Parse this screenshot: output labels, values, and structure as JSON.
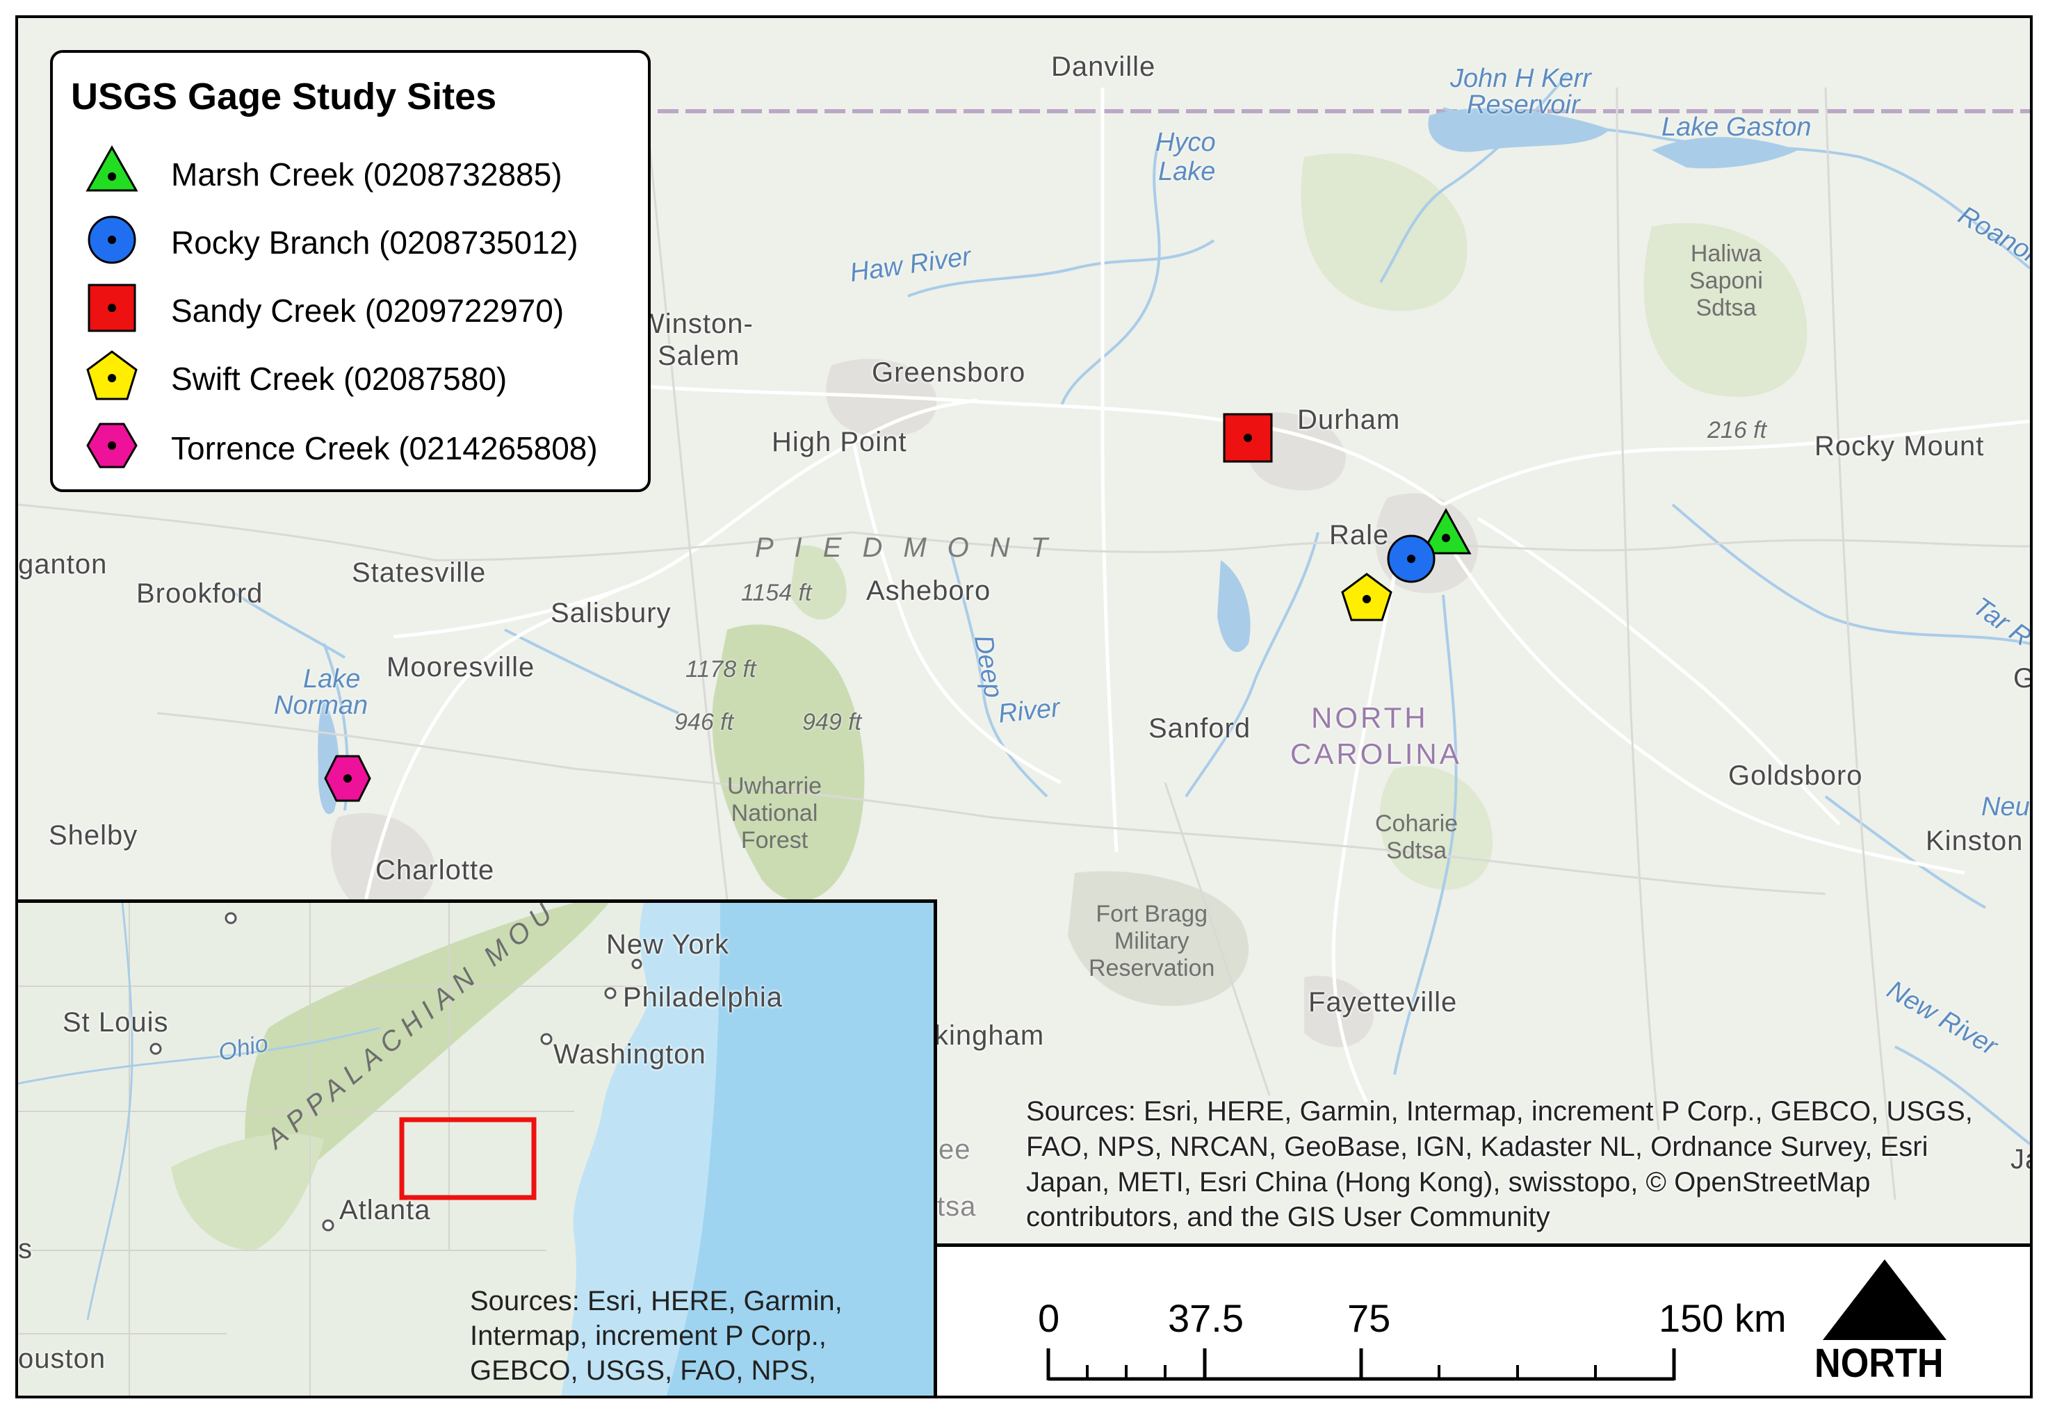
{
  "legend": {
    "title": "USGS Gage Study Sites",
    "items": [
      {
        "label": "Marsh Creek (0208732885)",
        "shape": "triangle",
        "color": "#22dd22"
      },
      {
        "label": "Rocky Branch (0208735012)",
        "shape": "circle",
        "color": "#1f6ff0"
      },
      {
        "label": "Sandy Creek (0209722970)",
        "shape": "square",
        "color": "#ee1111"
      },
      {
        "label": "Swift Creek (02087580)",
        "shape": "pentagon",
        "color": "#ffee00"
      },
      {
        "label": "Torrence Creek (0214265808)",
        "shape": "hexagon",
        "color": "#ee1199"
      }
    ]
  },
  "map": {
    "cities": [
      "Danville",
      "Winston-",
      "Salem",
      "Greensboro",
      "High Point",
      "Durham",
      "Rocky Mount",
      "Rale",
      "ganton",
      "Brookford",
      "Statesville",
      "Salisbury",
      "Asheboro",
      "Mooresville",
      "Shelby",
      "Charlotte",
      "Sanford",
      "Goldsboro",
      "Kinston",
      "Fayetteville",
      "kingham"
    ],
    "water": [
      "John H Kerr",
      "Reservoir",
      "Lake Gaston",
      "Hyco",
      "Lake",
      "Haw River",
      "Roanoke",
      "Lake",
      "Norman",
      "Deep",
      "River",
      "Tar R",
      "Neus",
      "New River"
    ],
    "areas": [
      "Haliwa",
      "Saponi",
      "Sdtsa",
      "Uwharrie",
      "National",
      "Forest",
      "Coharie",
      "Sdtsa",
      "Fort Bragg",
      "Military",
      "Reservation"
    ],
    "elevations": [
      "216 ft",
      "1154 ft",
      "1178 ft",
      "946 ft",
      "949 ft"
    ],
    "region": "PIEDMONT",
    "state": [
      "NORTH",
      "CAROLINA"
    ],
    "edge_fragments": [
      "G",
      "Ja",
      "ee",
      "tsa"
    ]
  },
  "inset": {
    "labels": {
      "st_louis": "St Louis",
      "ohio": "Ohio",
      "new_york": "New York",
      "philadelphia": "Philadelphia",
      "washington": "Washington",
      "atlanta": "Atlanta",
      "houston": "ouston",
      "appalachian": "APPALACHIAN MOU",
      "edge_s": "s"
    },
    "sources": "Sources: Esri, HERE, Garmin,\nIntermap, increment P Corp.,\nGEBCO, USGS, FAO, NPS,"
  },
  "sources": "Sources: Esri, HERE, Garmin, Intermap, increment P Corp., GEBCO, USGS, FAO, NPS, NRCAN, GeoBase, IGN, Kadaster NL, Ordnance Survey, Esri Japan, METI, Esri China (Hong Kong), swisstopo, © OpenStreetMap contributors, and the GIS User Community",
  "scale_bar": {
    "labels": [
      "0",
      "37.5",
      "75",
      "150 km"
    ]
  },
  "north_arrow": {
    "label": "NORTH"
  },
  "colors": {
    "marker_outline": "#000000",
    "extent_box": "#ee1111",
    "ocean": "#bfe3f5",
    "land": "#eef0ea"
  }
}
